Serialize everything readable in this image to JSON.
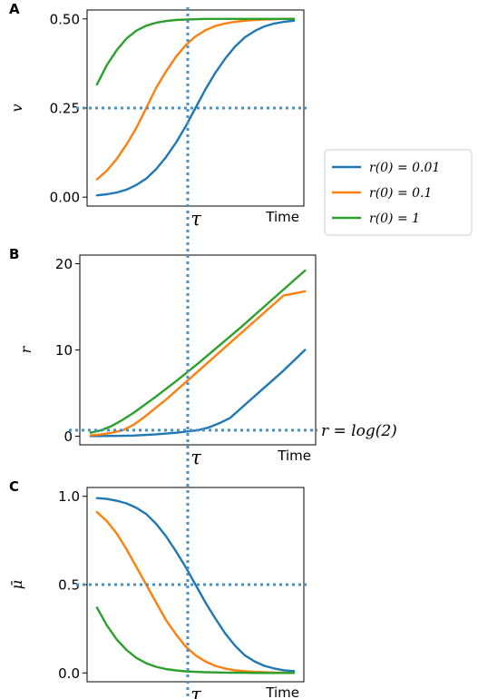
{
  "figure": {
    "legend": {
      "entries": [
        {
          "label": "r(0) = 0.01",
          "color": "#1f77b4"
        },
        {
          "label": "r(0) = 0.1",
          "color": "#ff7f0e"
        },
        {
          "label": "r(0) = 1",
          "color": "#2ca02c"
        }
      ],
      "placement": "right, between panels A and B"
    },
    "vertical_marker": {
      "label": "τ",
      "color": "#5b9bd5",
      "style": "dotted"
    }
  },
  "chart_data": [
    {
      "type": "line",
      "panel_label": "A",
      "xlabel": "Time",
      "ylabel": "v",
      "ylim": [
        0,
        0.5
      ],
      "xlim": [
        0,
        10
      ],
      "yticks": [
        "0.00",
        "0.25",
        "0.50"
      ],
      "tau_label": "τ",
      "hline": {
        "y": 0.25,
        "style": "dotted"
      },
      "grid": false,
      "series": [
        {
          "name": "r(0) = 0.01",
          "color": "#1f77b4",
          "x": [
            0,
            0.5,
            1,
            1.5,
            2,
            2.5,
            3,
            3.5,
            4,
            4.5,
            5,
            5.5,
            6,
            6.5,
            7,
            7.5,
            8,
            8.5,
            9,
            9.5,
            10
          ],
          "y": [
            0.005,
            0.008,
            0.013,
            0.021,
            0.034,
            0.052,
            0.078,
            0.112,
            0.152,
            0.198,
            0.25,
            0.302,
            0.348,
            0.388,
            0.422,
            0.448,
            0.466,
            0.479,
            0.487,
            0.492,
            0.495
          ]
        },
        {
          "name": "r(0) = 0.1",
          "color": "#ff7f0e",
          "x": [
            0,
            0.5,
            1,
            1.5,
            2,
            2.5,
            3,
            3.5,
            4,
            4.5,
            5,
            5.5,
            6,
            6.5,
            7,
            7.5,
            8,
            8.5,
            9,
            9.5,
            10
          ],
          "y": [
            0.05,
            0.074,
            0.107,
            0.148,
            0.194,
            0.25,
            0.306,
            0.352,
            0.393,
            0.426,
            0.451,
            0.468,
            0.48,
            0.487,
            0.492,
            0.495,
            0.497,
            0.498,
            0.499,
            0.5,
            0.5
          ]
        },
        {
          "name": "r(0) = 1",
          "color": "#2ca02c",
          "x": [
            0,
            0.5,
            1,
            1.5,
            2,
            2.5,
            3,
            3.5,
            4,
            4.5,
            5,
            5.5,
            6,
            6.5,
            7,
            7.5,
            8,
            8.5,
            9,
            9.5,
            10
          ],
          "y": [
            0.316,
            0.37,
            0.412,
            0.445,
            0.467,
            0.481,
            0.489,
            0.494,
            0.497,
            0.498,
            0.499,
            0.5,
            0.5,
            0.5,
            0.5,
            0.5,
            0.5,
            0.5,
            0.5,
            0.5,
            0.5
          ]
        }
      ]
    },
    {
      "type": "line",
      "panel_label": "B",
      "xlabel": "Time",
      "ylabel": "r",
      "ylim": [
        0,
        20
      ],
      "xlim": [
        0,
        10
      ],
      "yticks": [
        "0",
        "10",
        "20"
      ],
      "tau_label": "τ",
      "hline": {
        "y": 0.693,
        "label": "r = log(2)",
        "style": "dotted"
      },
      "grid": false,
      "series": [
        {
          "name": "r(0) = 0.01",
          "color": "#1f77b4",
          "x": [
            0,
            1,
            2,
            3,
            4,
            4.5,
            5,
            5.5,
            6,
            6.5,
            7,
            7.5,
            8,
            8.5,
            9,
            9.5,
            10
          ],
          "y": [
            0.01,
            0.027,
            0.073,
            0.2,
            0.4,
            0.55,
            0.69,
            1.0,
            1.5,
            2.1,
            3.2,
            4.3,
            5.4,
            6.5,
            7.6,
            8.8,
            10.0
          ]
        },
        {
          "name": "r(0) = 0.1",
          "color": "#ff7f0e",
          "x": [
            0,
            0.5,
            1,
            1.5,
            2,
            2.5,
            3,
            3.5,
            4,
            5,
            6,
            7,
            8,
            9,
            10
          ],
          "y": [
            0.1,
            0.2,
            0.4,
            0.7,
            1.3,
            2.2,
            3.2,
            4.2,
            5.3,
            7.5,
            9.7,
            11.9,
            14.1,
            16.3,
            16.8
          ]
        },
        {
          "name": "r(0) = 1",
          "color": "#2ca02c",
          "x": [
            0,
            0.5,
            1,
            1.5,
            2,
            3,
            4,
            5,
            6,
            7,
            8,
            9,
            10
          ],
          "y": [
            0.4,
            0.7,
            1.2,
            1.9,
            2.7,
            4.5,
            6.4,
            8.4,
            10.5,
            12.6,
            14.8,
            17.0,
            19.2
          ]
        }
      ]
    },
    {
      "type": "line",
      "panel_label": "C",
      "xlabel": "Time",
      "ylabel": "μ̄",
      "ylim": [
        0,
        1
      ],
      "xlim": [
        0,
        10
      ],
      "yticks": [
        "0.0",
        "0.5",
        "1.0"
      ],
      "tau_label": "τ",
      "hline": {
        "y": 0.5,
        "style": "dotted"
      },
      "grid": false,
      "series": [
        {
          "name": "r(0) = 0.01",
          "color": "#1f77b4",
          "x": [
            0,
            0.5,
            1,
            1.5,
            2,
            2.5,
            3,
            3.5,
            4,
            4.5,
            5,
            5.5,
            6,
            6.5,
            7,
            7.5,
            8,
            8.5,
            9,
            9.5,
            10
          ],
          "y": [
            0.99,
            0.985,
            0.975,
            0.96,
            0.935,
            0.9,
            0.845,
            0.775,
            0.69,
            0.6,
            0.5,
            0.4,
            0.31,
            0.225,
            0.155,
            0.1,
            0.065,
            0.04,
            0.025,
            0.015,
            0.01
          ]
        },
        {
          "name": "r(0) = 0.1",
          "color": "#ff7f0e",
          "x": [
            0,
            0.5,
            1,
            1.5,
            2,
            2.5,
            3,
            3.5,
            4,
            4.5,
            5,
            5.5,
            6,
            6.5,
            7,
            7.5,
            8,
            8.5,
            9,
            9.5,
            10
          ],
          "y": [
            0.91,
            0.86,
            0.79,
            0.7,
            0.6,
            0.5,
            0.4,
            0.3,
            0.22,
            0.15,
            0.1,
            0.065,
            0.04,
            0.025,
            0.015,
            0.01,
            0.006,
            0.004,
            0.002,
            0.001,
            0.0
          ]
        },
        {
          "name": "r(0) = 1",
          "color": "#2ca02c",
          "x": [
            0,
            0.5,
            1,
            1.5,
            2,
            2.5,
            3,
            3.5,
            4,
            4.5,
            5,
            5.5,
            6,
            6.5,
            7,
            7.5,
            8,
            8.5,
            9,
            9.5,
            10
          ],
          "y": [
            0.37,
            0.27,
            0.19,
            0.13,
            0.085,
            0.055,
            0.035,
            0.022,
            0.014,
            0.009,
            0.006,
            0.004,
            0.003,
            0.002,
            0.001,
            0.001,
            0.0,
            0.0,
            0.0,
            0.0,
            0.0
          ]
        }
      ]
    }
  ]
}
